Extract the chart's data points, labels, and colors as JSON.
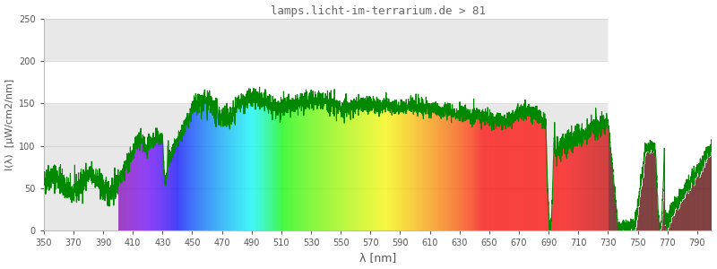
{
  "title": "lamps.licht-im-terrarium.de > 81",
  "xlabel": "λ [nm]",
  "ylabel": "I(λ)  [μW/cm2/nm]",
  "xlim": [
    350,
    800
  ],
  "ylim": [
    0,
    250
  ],
  "yticks": [
    0,
    50,
    100,
    150,
    200,
    250
  ],
  "xticks": [
    350,
    370,
    390,
    410,
    430,
    450,
    470,
    490,
    510,
    530,
    550,
    570,
    590,
    610,
    630,
    650,
    670,
    690,
    710,
    730,
    750,
    770,
    790
  ],
  "spectrum_start": 400,
  "spectrum_end": 730,
  "dark_red_start": 730,
  "dark_red_end": 800,
  "gray_band_ymin": 150,
  "gray_band_ymax": 200,
  "line_color": "#008800",
  "background_color": "#ffffff",
  "plot_bg_color": "#e8e8e8",
  "title_color": "#666666",
  "axis_label_color": "#555555",
  "dark_red_color": [
    0.35,
    0.0,
    0.0
  ],
  "white_fill_color": "#ffffff"
}
